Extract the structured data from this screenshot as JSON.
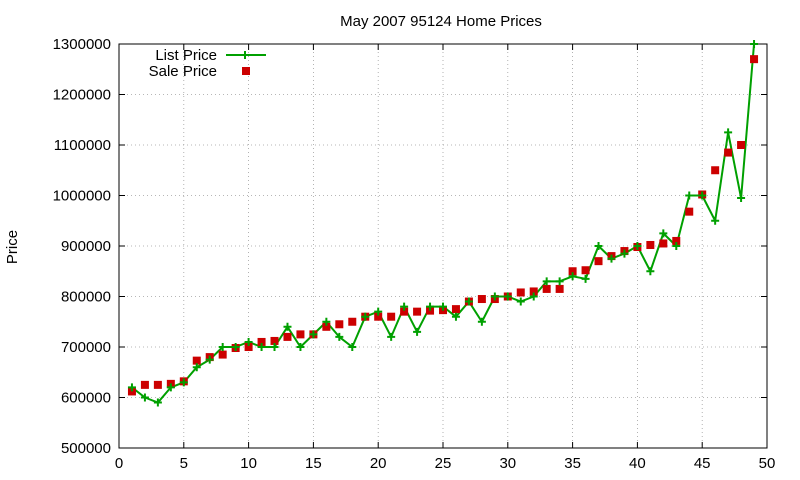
{
  "chart_data": {
    "type": "line",
    "title": "May 2007 95124 Home Prices",
    "xlabel": "",
    "ylabel": "Price",
    "xlim": [
      0,
      50
    ],
    "ylim": [
      500000,
      1300000
    ],
    "x_ticks": [
      0,
      5,
      10,
      15,
      20,
      25,
      30,
      35,
      40,
      45,
      50
    ],
    "y_ticks": [
      500000,
      600000,
      700000,
      800000,
      900000,
      1000000,
      1100000,
      1200000,
      1300000
    ],
    "grid": true,
    "legend_position": "top-left",
    "colors": {
      "list_price": "#00a000",
      "sale_price": "#cc0000"
    },
    "series": [
      {
        "name": "List Price",
        "style": "line-with-plus-markers",
        "x": [
          1,
          2,
          3,
          4,
          5,
          6,
          7,
          8,
          9,
          10,
          11,
          12,
          13,
          14,
          15,
          16,
          17,
          18,
          19,
          20,
          21,
          22,
          23,
          24,
          25,
          26,
          27,
          28,
          29,
          30,
          31,
          32,
          33,
          34,
          35,
          36,
          37,
          38,
          39,
          40,
          41,
          42,
          43,
          44,
          45,
          46,
          47,
          48,
          49
        ],
        "values": [
          620000,
          600000,
          590000,
          620000,
          630000,
          660000,
          675000,
          700000,
          700000,
          710000,
          700000,
          700000,
          740000,
          700000,
          725000,
          750000,
          720000,
          700000,
          760000,
          770000,
          720000,
          780000,
          730000,
          780000,
          780000,
          760000,
          790000,
          750000,
          800000,
          800000,
          790000,
          800000,
          830000,
          830000,
          840000,
          835000,
          900000,
          875000,
          885000,
          900000,
          850000,
          925000,
          900000,
          1000000,
          1000000,
          950000,
          1125000,
          995000,
          1300000
        ]
      },
      {
        "name": "Sale Price",
        "style": "square-markers",
        "x": [
          1,
          2,
          3,
          4,
          5,
          6,
          7,
          8,
          9,
          10,
          11,
          12,
          13,
          14,
          15,
          16,
          17,
          18,
          19,
          20,
          21,
          22,
          23,
          24,
          25,
          26,
          27,
          28,
          29,
          30,
          31,
          32,
          33,
          34,
          35,
          36,
          37,
          38,
          39,
          40,
          41,
          42,
          43,
          44,
          45,
          46,
          47,
          48,
          49
        ],
        "values": [
          612000,
          625000,
          625000,
          627000,
          632000,
          673000,
          680000,
          685000,
          698000,
          700000,
          710000,
          712000,
          720000,
          725000,
          725000,
          740000,
          745000,
          750000,
          760000,
          760000,
          760000,
          770000,
          770000,
          772000,
          773000,
          775000,
          790000,
          795000,
          795000,
          800000,
          808000,
          810000,
          815000,
          815000,
          850000,
          852000,
          870000,
          880000,
          890000,
          898000,
          902000,
          905000,
          910000,
          968000,
          1002000,
          1050000,
          1085000,
          1100000,
          1270000
        ]
      }
    ]
  }
}
